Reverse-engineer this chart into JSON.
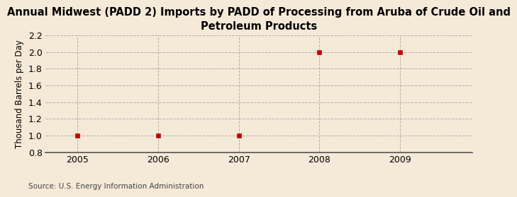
{
  "title": "Annual Midwest (PADD 2) Imports by PADD of Processing from Aruba of Crude Oil and\nPetroleum Products",
  "ylabel": "Thousand Barrels per Day",
  "years": [
    2005,
    2006,
    2007,
    2008,
    2009
  ],
  "values": [
    1.0,
    1.0,
    1.0,
    2.0,
    2.0
  ],
  "ylim": [
    0.8,
    2.2
  ],
  "xlim": [
    2004.6,
    2009.9
  ],
  "yticks": [
    0.8,
    1.0,
    1.2,
    1.4,
    1.6,
    1.8,
    2.0,
    2.2
  ],
  "xticks": [
    2005,
    2006,
    2007,
    2008,
    2009
  ],
  "marker_color": "#cc0000",
  "marker": "s",
  "marker_size": 4,
  "grid_color": "#aaaaaa",
  "grid_style": "--",
  "background_color": "#f5ead8",
  "plot_bg_color": "#f5ead8",
  "source_text": "Source: U.S. Energy Information Administration",
  "title_fontsize": 10.5,
  "axis_label_fontsize": 8.5,
  "tick_fontsize": 9,
  "source_fontsize": 7.5,
  "spine_bottom_color": "#555555",
  "border_radius_color": "#e8d8b0"
}
